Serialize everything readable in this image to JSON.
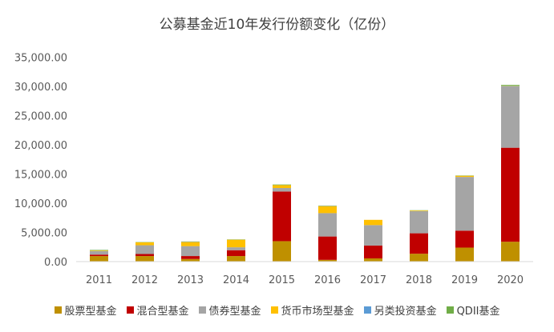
{
  "chart_data": {
    "type": "bar",
    "stacked": true,
    "title": "公募基金近10年发行份额变化（亿份）",
    "categories": [
      "2011",
      "2012",
      "2013",
      "2014",
      "2015",
      "2016",
      "2017",
      "2018",
      "2019",
      "2020"
    ],
    "ylim": [
      0,
      35000
    ],
    "yticks": [
      0,
      5000,
      10000,
      15000,
      20000,
      25000,
      30000,
      35000
    ],
    "ytick_labels": [
      "0.00",
      "5,000.00",
      "10,000.00",
      "15,000.00",
      "20,000.00",
      "25,000.00",
      "30,000.00",
      "35,000.00"
    ],
    "grid": false,
    "legend_position": "bottom",
    "series": [
      {
        "name": "股票型基金",
        "color": "#BF9000",
        "values": [
          950,
          950,
          450,
          950,
          3500,
          300,
          550,
          1350,
          2400,
          3400
        ]
      },
      {
        "name": "混合型基金",
        "color": "#C00000",
        "values": [
          250,
          350,
          500,
          1000,
          8500,
          4000,
          2200,
          3500,
          2900,
          16100
        ]
      },
      {
        "name": "债券型基金",
        "color": "#A5A5A5",
        "values": [
          600,
          1500,
          1700,
          500,
          600,
          4000,
          3500,
          3800,
          9200,
          10500
        ]
      },
      {
        "name": "货币市场型基金",
        "color": "#FFC000",
        "values": [
          100,
          500,
          700,
          1300,
          500,
          1200,
          900,
          100,
          200,
          50
        ]
      },
      {
        "name": "另类投资基金",
        "color": "#5B9BD5",
        "values": [
          0,
          0,
          50,
          0,
          0,
          50,
          0,
          0,
          0,
          50
        ]
      },
      {
        "name": "QDII基金",
        "color": "#70AD47",
        "values": [
          100,
          50,
          50,
          50,
          100,
          50,
          0,
          50,
          50,
          150
        ]
      }
    ]
  }
}
